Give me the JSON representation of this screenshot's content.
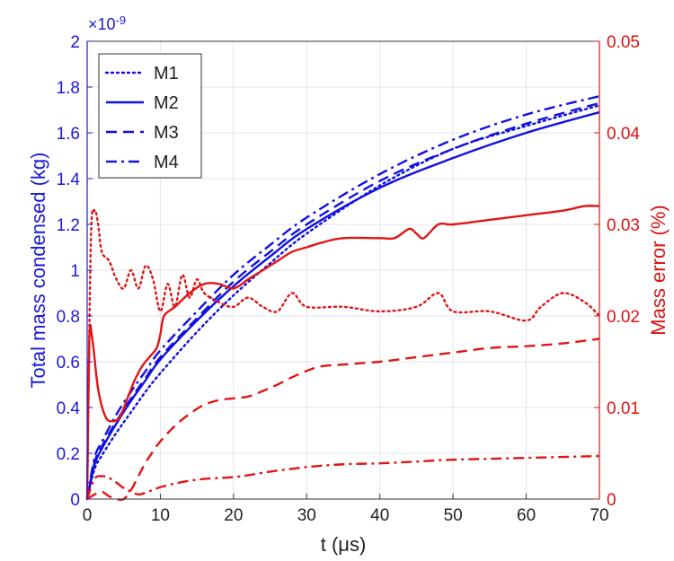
{
  "chart_data": {
    "type": "line",
    "x_label": "t (μs)",
    "y_left_label": "Total mass condensed (kg)",
    "y_left_multiplier": "×10",
    "y_left_multiplier_exp": "-9",
    "y_right_label": "Mass error (%)",
    "xlim": [
      0,
      70
    ],
    "ylim_left": [
      0,
      2
    ],
    "ylim_right": [
      0,
      0.05
    ],
    "x_ticks": [
      "0",
      "10",
      "20",
      "30",
      "40",
      "50",
      "60",
      "70"
    ],
    "y_left_ticks": [
      "0",
      "0.2",
      "0.4",
      "0.6",
      "0.8",
      "1",
      "1.2",
      "1.4",
      "1.6",
      "1.8",
      "2"
    ],
    "y_right_ticks": [
      "0",
      "0.01",
      "0.02",
      "0.03",
      "0.04",
      "0.05"
    ],
    "grid": true,
    "legend_position": "top-left",
    "colors": {
      "left_axis": "#1a1adb",
      "right_axis": "#e01010",
      "mass_series": "#1010e0",
      "error_series": "#e01515"
    },
    "series": [
      {
        "name": "M1",
        "axis": "left",
        "style": "dotted",
        "x": [
          0,
          1,
          2,
          4,
          6,
          8,
          10,
          15,
          20,
          25,
          30,
          40,
          50,
          60,
          70
        ],
        "y": [
          0.0,
          0.13,
          0.19,
          0.29,
          0.38,
          0.47,
          0.55,
          0.73,
          0.89,
          1.03,
          1.16,
          1.37,
          1.53,
          1.63,
          1.72
        ]
      },
      {
        "name": "M2",
        "axis": "left",
        "style": "solid",
        "x": [
          0,
          1,
          2,
          4,
          6,
          8,
          10,
          15,
          20,
          25,
          30,
          40,
          50,
          60,
          70
        ],
        "y": [
          0.0,
          0.15,
          0.22,
          0.33,
          0.43,
          0.52,
          0.61,
          0.78,
          0.93,
          1.06,
          1.18,
          1.36,
          1.49,
          1.6,
          1.69
        ]
      },
      {
        "name": "M3",
        "axis": "left",
        "style": "dashed",
        "x": [
          0,
          1,
          2,
          4,
          6,
          8,
          10,
          15,
          20,
          25,
          30,
          40,
          50,
          60,
          70
        ],
        "y": [
          0.0,
          0.16,
          0.23,
          0.34,
          0.44,
          0.53,
          0.62,
          0.79,
          0.95,
          1.08,
          1.2,
          1.39,
          1.53,
          1.64,
          1.73
        ]
      },
      {
        "name": "M4",
        "axis": "left",
        "style": "dashdot",
        "x": [
          0,
          1,
          2,
          4,
          6,
          8,
          10,
          15,
          20,
          25,
          30,
          40,
          50,
          60,
          70
        ],
        "y": [
          0.0,
          0.18,
          0.25,
          0.37,
          0.47,
          0.56,
          0.65,
          0.82,
          0.98,
          1.11,
          1.23,
          1.42,
          1.57,
          1.68,
          1.76
        ]
      },
      {
        "axis": "right",
        "style": "dotted",
        "x": [
          0,
          0.5,
          1,
          1.5,
          2,
          3,
          4,
          5,
          6,
          7,
          8,
          9,
          10,
          11,
          12,
          13,
          14,
          15,
          16,
          18,
          20,
          22,
          24,
          26,
          28,
          30,
          35,
          40,
          45,
          48,
          50,
          55,
          60,
          62,
          65,
          68,
          70
        ],
        "y": [
          0.0,
          0.028,
          0.0315,
          0.03,
          0.027,
          0.026,
          0.024,
          0.023,
          0.025,
          0.023,
          0.0255,
          0.024,
          0.0205,
          0.0235,
          0.021,
          0.0245,
          0.022,
          0.024,
          0.0225,
          0.0215,
          0.021,
          0.022,
          0.021,
          0.0205,
          0.0225,
          0.021,
          0.021,
          0.0205,
          0.021,
          0.0225,
          0.0205,
          0.0205,
          0.0195,
          0.021,
          0.0225,
          0.0215,
          0.02
        ]
      },
      {
        "axis": "right",
        "style": "solid",
        "x": [
          0,
          0.3,
          0.7,
          1.5,
          2.5,
          3.5,
          4.5,
          5.5,
          6.5,
          7.5,
          8.5,
          9.5,
          10,
          10.5,
          12,
          14,
          16,
          18,
          20,
          22,
          24,
          26,
          28,
          30,
          32,
          35,
          40,
          42,
          44,
          45,
          46,
          48,
          50,
          55,
          60,
          65,
          68,
          70
        ],
        "y": [
          0.0,
          0.0175,
          0.0175,
          0.012,
          0.009,
          0.0085,
          0.009,
          0.011,
          0.013,
          0.0145,
          0.0155,
          0.0165,
          0.018,
          0.02,
          0.021,
          0.0225,
          0.0235,
          0.0235,
          0.023,
          0.024,
          0.025,
          0.026,
          0.027,
          0.0275,
          0.028,
          0.0285,
          0.0285,
          0.0285,
          0.0295,
          0.029,
          0.0285,
          0.03,
          0.03,
          0.0305,
          0.031,
          0.0315,
          0.032,
          0.032
        ]
      },
      {
        "axis": "right",
        "style": "dashed",
        "x": [
          0,
          1,
          2,
          3,
          4,
          5,
          6,
          7,
          8,
          9,
          10,
          12,
          14,
          16,
          18,
          20,
          22,
          24,
          26,
          28,
          30,
          32,
          35,
          40,
          45,
          50,
          55,
          60,
          65,
          70
        ],
        "y": [
          0.0,
          0.0005,
          0.0008,
          0.0003,
          0.0,
          0.0,
          0.001,
          0.0025,
          0.004,
          0.0052,
          0.0063,
          0.008,
          0.0093,
          0.0103,
          0.0108,
          0.011,
          0.0112,
          0.0118,
          0.0125,
          0.0133,
          0.014,
          0.0145,
          0.0147,
          0.015,
          0.0155,
          0.016,
          0.0165,
          0.0167,
          0.017,
          0.0175
        ]
      },
      {
        "axis": "right",
        "style": "dashdot",
        "x": [
          0,
          1,
          2,
          3,
          4,
          5,
          6,
          7,
          8,
          9,
          10,
          12,
          14,
          16,
          18,
          20,
          22,
          25,
          28,
          30,
          35,
          40,
          45,
          50,
          55,
          60,
          65,
          70
        ],
        "y": [
          0.0,
          0.0022,
          0.0025,
          0.0023,
          0.0018,
          0.0012,
          0.0008,
          0.0005,
          0.0007,
          0.001,
          0.0013,
          0.0017,
          0.002,
          0.0022,
          0.0023,
          0.0024,
          0.0026,
          0.003,
          0.0033,
          0.0035,
          0.0038,
          0.0039,
          0.0041,
          0.0043,
          0.0044,
          0.0045,
          0.0046,
          0.0047
        ]
      }
    ]
  }
}
